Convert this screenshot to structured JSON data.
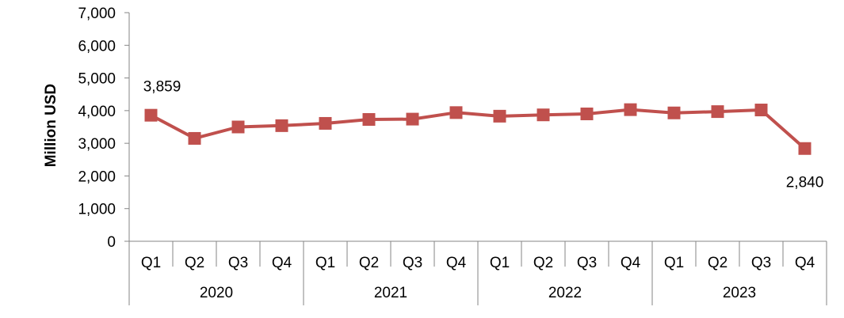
{
  "chart_data": {
    "type": "line",
    "title": "",
    "xlabel": "",
    "ylabel": "Million USD",
    "ylim": [
      0,
      7000
    ],
    "yticks": [
      0,
      1000,
      2000,
      3000,
      4000,
      5000,
      6000,
      7000
    ],
    "ytick_labels": [
      "0",
      "1,000",
      "2,000",
      "3,000",
      "4,000",
      "5,000",
      "6,000",
      "7,000"
    ],
    "grid": false,
    "legend": "none",
    "categories": [
      "Q1",
      "Q2",
      "Q3",
      "Q4",
      "Q1",
      "Q2",
      "Q3",
      "Q4",
      "Q1",
      "Q2",
      "Q3",
      "Q4",
      "Q1",
      "Q2",
      "Q3",
      "Q4"
    ],
    "groups": [
      {
        "label": "2020",
        "count": 4
      },
      {
        "label": "2021",
        "count": 4
      },
      {
        "label": "2022",
        "count": 4
      },
      {
        "label": "2023",
        "count": 4
      }
    ],
    "series": [
      {
        "color": "#c0504d",
        "values": [
          3859,
          3150,
          3500,
          3540,
          3610,
          3730,
          3740,
          3940,
          3830,
          3870,
          3900,
          4030,
          3930,
          3970,
          4020,
          2840
        ]
      }
    ],
    "data_labels": [
      {
        "index": 0,
        "text": "3,859"
      },
      {
        "index": 15,
        "text": "2,840"
      }
    ]
  }
}
